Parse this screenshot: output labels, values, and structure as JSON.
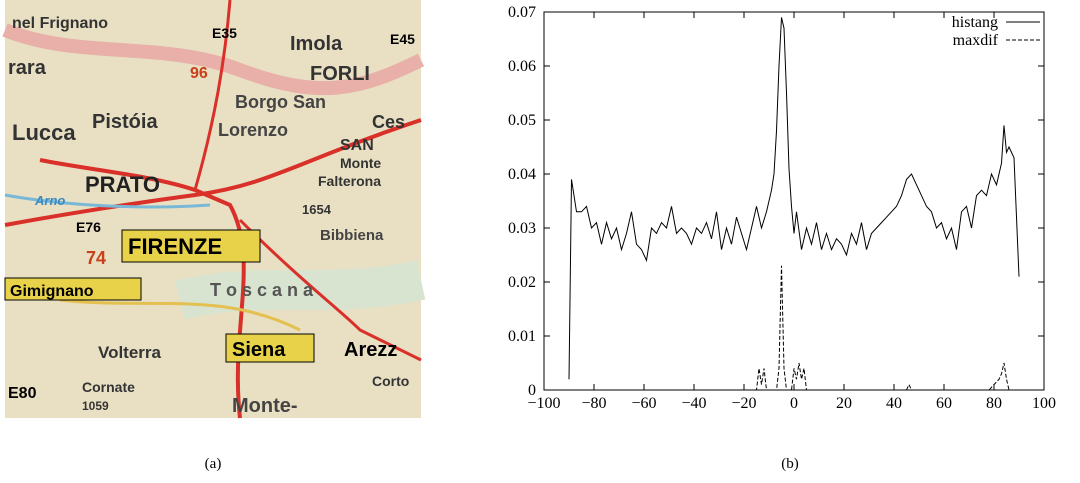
{
  "map": {
    "caption": "(a)",
    "labels": [
      "nel Frignano",
      "E35",
      "Imola",
      "E45",
      "rara",
      "96",
      "FORLI",
      "Borgo San",
      "Lorenzo",
      "Lucca",
      "Pistóia",
      "Ces",
      "SAN",
      "Monte",
      "Falterona",
      "PRATO",
      "Arno",
      "1654",
      "E76",
      "FIRENZE",
      "Bibbiena",
      "74",
      "Gimignano",
      "T o s c a n a",
      "Volterra",
      "Siena",
      "Arezz",
      "E80",
      "Cornate",
      "1059",
      "Monte-",
      "Corto"
    ]
  },
  "chart_data": {
    "type": "line",
    "caption": "(b)",
    "xlim": [
      -100,
      100
    ],
    "xticks": [
      {
        "value": -100,
        "label": "−100"
      },
      {
        "value": -80,
        "label": "−80"
      },
      {
        "value": -60,
        "label": "−60"
      },
      {
        "value": -40,
        "label": "−40"
      },
      {
        "value": -20,
        "label": "−20"
      },
      0,
      20,
      40,
      60,
      80,
      100
    ],
    "ylim": [
      0,
      0.07
    ],
    "yticks": [
      0,
      0.01,
      0.02,
      0.03,
      0.04,
      0.05,
      0.06,
      0.07
    ],
    "legend": "upper right",
    "series": [
      {
        "name": "histang",
        "color": "#000000",
        "style": "solid",
        "x": [
          -90,
          -89,
          -87,
          -85,
          -83,
          -81,
          -79,
          -77,
          -75,
          -73,
          -71,
          -69,
          -67,
          -65,
          -63,
          -61,
          -59,
          -57,
          -55,
          -53,
          -51,
          -49,
          -47,
          -45,
          -43,
          -41,
          -39,
          -37,
          -35,
          -33,
          -31,
          -29,
          -27,
          -25,
          -23,
          -21,
          -19,
          -17,
          -15,
          -13,
          -11,
          -9,
          -8,
          -7,
          -6,
          -5,
          -4,
          -3,
          -2,
          -1,
          0,
          1,
          3,
          5,
          7,
          9,
          11,
          13,
          15,
          17,
          19,
          21,
          23,
          25,
          27,
          29,
          31,
          33,
          35,
          37,
          39,
          41,
          43,
          45,
          47,
          49,
          51,
          53,
          55,
          57,
          59,
          61,
          63,
          65,
          67,
          69,
          71,
          73,
          75,
          77,
          79,
          81,
          83,
          84,
          85,
          86,
          88,
          90
        ],
        "values": [
          0.002,
          0.039,
          0.033,
          0.033,
          0.034,
          0.03,
          0.031,
          0.027,
          0.031,
          0.028,
          0.03,
          0.026,
          0.029,
          0.033,
          0.027,
          0.026,
          0.024,
          0.03,
          0.029,
          0.031,
          0.03,
          0.034,
          0.029,
          0.03,
          0.029,
          0.027,
          0.03,
          0.029,
          0.031,
          0.028,
          0.033,
          0.026,
          0.03,
          0.027,
          0.032,
          0.029,
          0.026,
          0.03,
          0.034,
          0.03,
          0.033,
          0.037,
          0.04,
          0.048,
          0.06,
          0.069,
          0.067,
          0.055,
          0.041,
          0.034,
          0.029,
          0.033,
          0.026,
          0.03,
          0.027,
          0.031,
          0.026,
          0.029,
          0.026,
          0.028,
          0.027,
          0.025,
          0.029,
          0.027,
          0.031,
          0.026,
          0.029,
          0.03,
          0.031,
          0.032,
          0.033,
          0.034,
          0.036,
          0.039,
          0.04,
          0.038,
          0.036,
          0.034,
          0.033,
          0.03,
          0.031,
          0.028,
          0.03,
          0.026,
          0.033,
          0.034,
          0.03,
          0.036,
          0.037,
          0.036,
          0.04,
          0.038,
          0.042,
          0.049,
          0.044,
          0.045,
          0.043,
          0.021
        ]
      },
      {
        "name": "maxdif",
        "color": "#000000",
        "style": "dashed",
        "x": [
          -90,
          -15,
          -14,
          -13,
          -12,
          -11,
          -7,
          -6,
          -5,
          -4,
          -3,
          -1,
          0,
          1,
          2,
          3,
          4,
          5,
          45,
          46,
          47,
          78,
          80,
          82,
          83,
          84,
          85,
          86,
          90
        ],
        "values": [
          0,
          0,
          0.004,
          0.001,
          0.004,
          0,
          0,
          0.004,
          0.023,
          0.004,
          0,
          0,
          0.004,
          0.002,
          0.005,
          0.002,
          0.004,
          0,
          0,
          0.001,
          0,
          0,
          0.001,
          0.002,
          0.003,
          0.005,
          0.002,
          0,
          0
        ]
      }
    ]
  }
}
